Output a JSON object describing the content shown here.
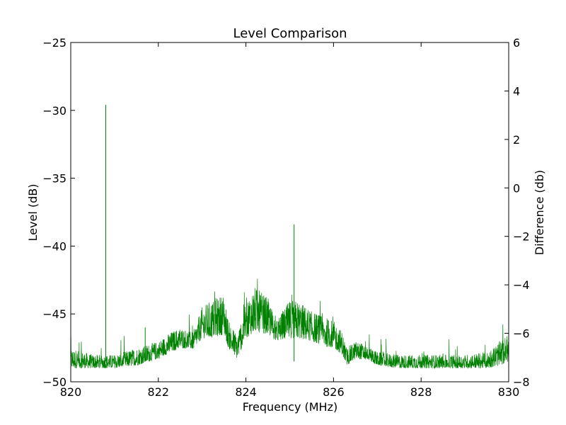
{
  "chart_data": {
    "type": "line",
    "title": "Level Comparison",
    "xlabel": "Frequency (MHz)",
    "ylabel": "Level (dB)",
    "y2label": "Difference (db)",
    "xlim": [
      820,
      830
    ],
    "ylim": [
      -50,
      -25
    ],
    "y2lim": [
      -8,
      6
    ],
    "xticks": [
      820,
      822,
      824,
      826,
      828,
      830
    ],
    "yticks": [
      -50,
      -45,
      -40,
      -35,
      -30,
      -25
    ],
    "y2ticks": [
      -8,
      -6,
      -4,
      -2,
      0,
      2,
      4,
      6
    ],
    "xtick_labels": [
      "820",
      "822",
      "824",
      "826",
      "828",
      "830"
    ],
    "ytick_labels": [
      "−50",
      "−45",
      "−40",
      "−35",
      "−30",
      "−25"
    ],
    "y2tick_labels": [
      "−8",
      "−6",
      "−4",
      "−2",
      "0",
      "2",
      "4",
      "6"
    ],
    "grid": false,
    "series": [
      {
        "color": "#008000",
        "envelope": {
          "x": [
            820.0,
            820.5,
            821.0,
            821.5,
            822.0,
            822.3,
            822.5,
            822.8,
            823.0,
            823.2,
            823.5,
            823.6,
            823.8,
            824.0,
            824.2,
            824.5,
            824.7,
            825.0,
            825.2,
            825.5,
            825.8,
            826.0,
            826.2,
            826.3,
            826.5,
            826.8,
            827.0,
            827.5,
            828.0,
            828.5,
            829.0,
            829.5,
            829.8,
            830.0
          ],
          "low": [
            -49.0,
            -49.0,
            -49.0,
            -48.8,
            -48.3,
            -47.8,
            -47.5,
            -47.6,
            -46.8,
            -46.8,
            -46.5,
            -47.5,
            -48.3,
            -46.8,
            -46.3,
            -46.5,
            -47.0,
            -46.8,
            -46.8,
            -47.0,
            -47.4,
            -47.5,
            -48.0,
            -48.8,
            -48.3,
            -48.4,
            -48.8,
            -49.0,
            -49.0,
            -49.0,
            -49.0,
            -49.0,
            -48.8,
            -48.5
          ],
          "high": [
            -47.5,
            -48.0,
            -48.0,
            -47.5,
            -47.0,
            -46.3,
            -46.0,
            -46.3,
            -44.5,
            -44.0,
            -43.5,
            -45.5,
            -46.5,
            -44.0,
            -43.0,
            -43.8,
            -45.5,
            -44.0,
            -44.0,
            -44.8,
            -45.2,
            -45.5,
            -46.3,
            -47.5,
            -47.0,
            -47.3,
            -47.8,
            -48.0,
            -48.0,
            -48.0,
            -48.0,
            -47.8,
            -47.0,
            -46.5
          ]
        },
        "spikes": [
          {
            "x": 820.8,
            "y": -29.6
          },
          {
            "x": 825.1,
            "y": -38.4
          },
          {
            "x": 821.7,
            "y": -46.0
          }
        ]
      }
    ]
  }
}
